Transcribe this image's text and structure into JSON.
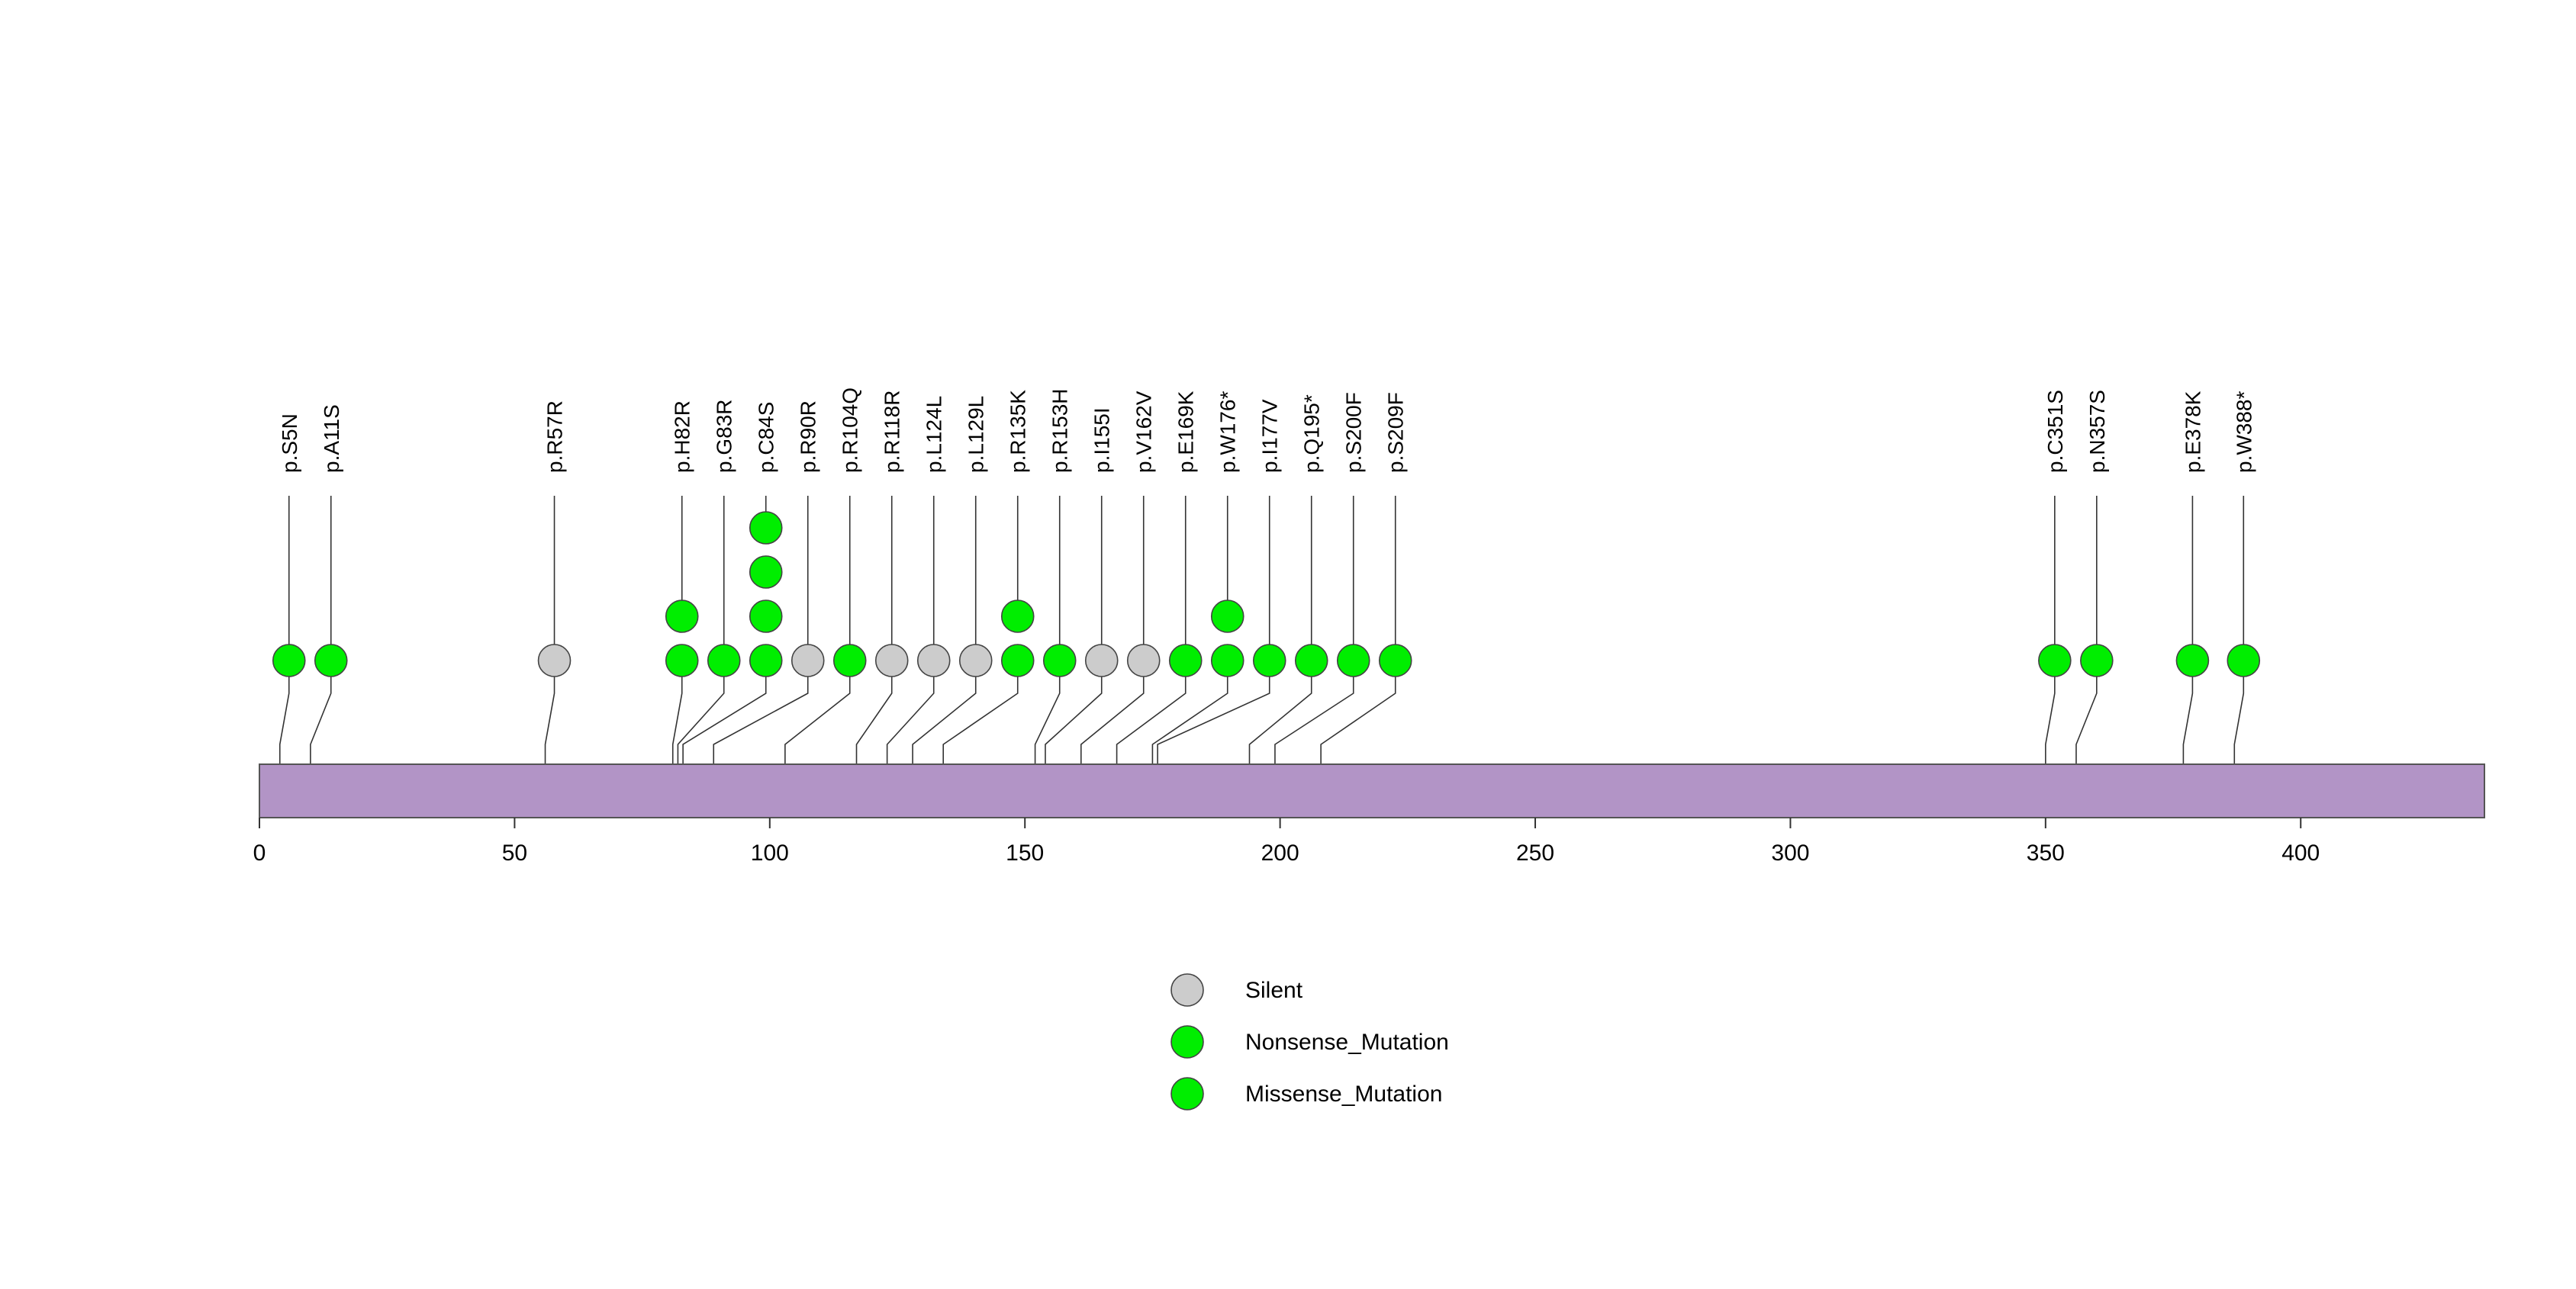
{
  "chart_data": {
    "type": "lollipop",
    "xlim": [
      0,
      436
    ],
    "ticks": [
      0,
      50,
      100,
      150,
      200,
      250,
      300,
      350,
      400
    ],
    "tick_labels": [
      "0",
      "50",
      "100",
      "150",
      "200",
      "250",
      "300",
      "350",
      "400"
    ],
    "colors": {
      "protein_bar": "#b294c6",
      "Silent": "#cccccc",
      "Nonsense_Mutation": "#00ee00",
      "Missense_Mutation": "#00ee00"
    },
    "mutations": [
      {
        "label": "p.S5N",
        "position": 4,
        "type": "Missense_Mutation",
        "count": 1
      },
      {
        "label": "p.A11S",
        "position": 10,
        "type": "Missense_Mutation",
        "count": 1
      },
      {
        "label": "p.R57R",
        "position": 56,
        "type": "Silent",
        "count": 1
      },
      {
        "label": "p.H82R",
        "position": 81,
        "type": "Missense_Mutation",
        "count": 2
      },
      {
        "label": "p.G83R",
        "position": 82,
        "type": "Missense_Mutation",
        "count": 1
      },
      {
        "label": "p.C84S",
        "position": 83,
        "type": "Missense_Mutation",
        "count": 4
      },
      {
        "label": "p.R90R",
        "position": 89,
        "type": "Silent",
        "count": 1
      },
      {
        "label": "p.R104Q",
        "position": 103,
        "type": "Missense_Mutation",
        "count": 1
      },
      {
        "label": "p.R118R",
        "position": 117,
        "type": "Silent",
        "count": 1
      },
      {
        "label": "p.L124L",
        "position": 123,
        "type": "Silent",
        "count": 1
      },
      {
        "label": "p.L129L",
        "position": 128,
        "type": "Silent",
        "count": 1
      },
      {
        "label": "p.R135K",
        "position": 134,
        "type": "Missense_Mutation",
        "count": 2
      },
      {
        "label": "p.R153H",
        "position": 152,
        "type": "Missense_Mutation",
        "count": 1
      },
      {
        "label": "p.I155I",
        "position": 154,
        "type": "Silent",
        "count": 1
      },
      {
        "label": "p.V162V",
        "position": 161,
        "type": "Silent",
        "count": 1
      },
      {
        "label": "p.E169K",
        "position": 168,
        "type": "Missense_Mutation",
        "count": 1
      },
      {
        "label": "p.W176*",
        "position": 175,
        "type": "Nonsense_Mutation",
        "count": 2
      },
      {
        "label": "p.I177V",
        "position": 176,
        "type": "Missense_Mutation",
        "count": 1
      },
      {
        "label": "p.Q195*",
        "position": 194,
        "type": "Nonsense_Mutation",
        "count": 1
      },
      {
        "label": "p.S200F",
        "position": 199,
        "type": "Missense_Mutation",
        "count": 1
      },
      {
        "label": "p.S209F",
        "position": 208,
        "type": "Missense_Mutation",
        "count": 1
      },
      {
        "label": "p.C351S",
        "position": 350,
        "type": "Missense_Mutation",
        "count": 1
      },
      {
        "label": "p.N357S",
        "position": 356,
        "type": "Missense_Mutation",
        "count": 1
      },
      {
        "label": "p.E378K",
        "position": 377,
        "type": "Missense_Mutation",
        "count": 1
      },
      {
        "label": "p.W388*",
        "position": 387,
        "type": "Nonsense_Mutation",
        "count": 1
      }
    ],
    "legend": {
      "placement": "bottom-center",
      "entries": [
        {
          "label": "Silent",
          "type": "Silent"
        },
        {
          "label": "Nonsense_Mutation",
          "type": "Nonsense_Mutation"
        },
        {
          "label": "Missense_Mutation",
          "type": "Missense_Mutation"
        }
      ]
    }
  }
}
